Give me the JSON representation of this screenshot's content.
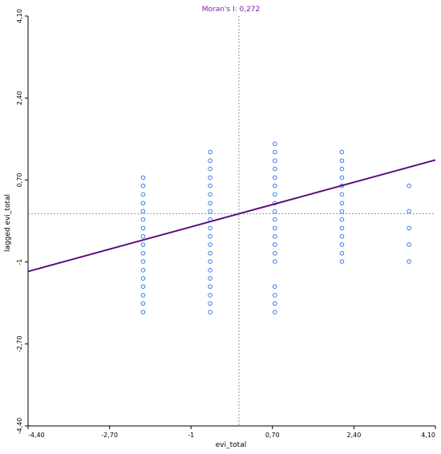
{
  "chart_data": {
    "type": "scatter",
    "title": "Moran's I: 0,272",
    "xlabel": "evi_total",
    "ylabel": "lagged evi_total",
    "xlim": [
      -4.4,
      4.1
    ],
    "ylim": [
      -4.4,
      4.1
    ],
    "x_ticks": [
      {
        "value": -4.4,
        "label": "-4,40"
      },
      {
        "value": -2.7,
        "label": "-2,70"
      },
      {
        "value": -1.0,
        "label": "-1"
      },
      {
        "value": 0.7,
        "label": "0,70"
      },
      {
        "value": 2.4,
        "label": "2,40"
      },
      {
        "value": 4.1,
        "label": "4,10"
      }
    ],
    "y_ticks": [
      {
        "value": -4.4,
        "label": "-4,40"
      },
      {
        "value": -2.7,
        "label": "-2,70"
      },
      {
        "value": -1.0,
        "label": "-1"
      },
      {
        "value": 0.7,
        "label": "0,70"
      },
      {
        "value": 2.4,
        "label": "2,40"
      },
      {
        "value": 4.1,
        "label": "4,10"
      }
    ],
    "reference_lines": {
      "x": 0,
      "y": 0
    },
    "regression": {
      "slope": 0.272,
      "intercept": 0.0
    },
    "points": [
      [
        -2.0,
        0.75
      ],
      [
        -2.0,
        0.58
      ],
      [
        -2.0,
        0.4
      ],
      [
        -2.0,
        0.22
      ],
      [
        -2.0,
        0.05
      ],
      [
        -2.0,
        -0.12
      ],
      [
        -2.0,
        -0.3
      ],
      [
        -2.0,
        -0.47
      ],
      [
        -2.0,
        -0.64
      ],
      [
        -2.0,
        -0.82
      ],
      [
        -2.0,
        -0.99
      ],
      [
        -2.0,
        -1.17
      ],
      [
        -2.0,
        -1.34
      ],
      [
        -2.0,
        -1.51
      ],
      [
        -2.0,
        -1.69
      ],
      [
        -2.0,
        -1.86
      ],
      [
        -2.0,
        -2.04
      ],
      [
        -0.6,
        1.28
      ],
      [
        -0.6,
        1.1
      ],
      [
        -0.6,
        0.93
      ],
      [
        -0.6,
        0.75
      ],
      [
        -0.6,
        0.58
      ],
      [
        -0.6,
        0.4
      ],
      [
        -0.6,
        0.22
      ],
      [
        -0.6,
        0.05
      ],
      [
        -0.6,
        -0.12
      ],
      [
        -0.6,
        -0.3
      ],
      [
        -0.6,
        -0.47
      ],
      [
        -0.6,
        -0.64
      ],
      [
        -0.6,
        -0.82
      ],
      [
        -0.6,
        -0.99
      ],
      [
        -0.6,
        -1.17
      ],
      [
        -0.6,
        -1.34
      ],
      [
        -0.6,
        -1.51
      ],
      [
        -0.6,
        -1.69
      ],
      [
        -0.6,
        -1.86
      ],
      [
        -0.6,
        -2.04
      ],
      [
        0.75,
        1.45
      ],
      [
        0.75,
        1.28
      ],
      [
        0.75,
        1.1
      ],
      [
        0.75,
        0.93
      ],
      [
        0.75,
        0.75
      ],
      [
        0.75,
        0.58
      ],
      [
        0.75,
        0.4
      ],
      [
        0.75,
        0.22
      ],
      [
        0.75,
        0.05
      ],
      [
        0.75,
        -0.12
      ],
      [
        0.75,
        -0.3
      ],
      [
        0.75,
        -0.47
      ],
      [
        0.75,
        -0.64
      ],
      [
        0.75,
        -0.82
      ],
      [
        0.75,
        -0.99
      ],
      [
        0.75,
        -1.51
      ],
      [
        0.75,
        -1.69
      ],
      [
        0.75,
        -1.86
      ],
      [
        0.75,
        -2.04
      ],
      [
        2.15,
        1.28
      ],
      [
        2.15,
        1.1
      ],
      [
        2.15,
        0.93
      ],
      [
        2.15,
        0.75
      ],
      [
        2.15,
        0.58
      ],
      [
        2.15,
        0.4
      ],
      [
        2.15,
        0.22
      ],
      [
        2.15,
        0.05
      ],
      [
        2.15,
        -0.12
      ],
      [
        2.15,
        -0.3
      ],
      [
        2.15,
        -0.47
      ],
      [
        2.15,
        -0.64
      ],
      [
        2.15,
        -0.82
      ],
      [
        2.15,
        -0.99
      ],
      [
        3.55,
        0.58
      ],
      [
        3.55,
        0.05
      ],
      [
        3.55,
        -0.3
      ],
      [
        3.55,
        -0.64
      ],
      [
        3.55,
        -0.99
      ]
    ],
    "grid": false,
    "colors": {
      "points": "#3a7de8",
      "regression": "#5b0a7a",
      "title": "#7a1fa2",
      "reference": "#777777",
      "axis": "#000000"
    }
  }
}
